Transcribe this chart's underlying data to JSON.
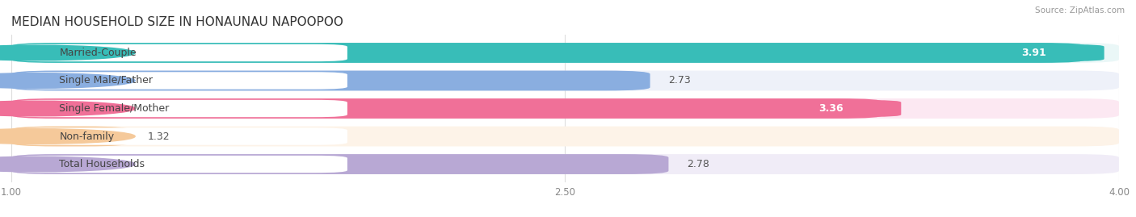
{
  "title": "MEDIAN HOUSEHOLD SIZE IN HONAUNAU NAPOOPOO",
  "source": "Source: ZipAtlas.com",
  "categories": [
    "Married-Couple",
    "Single Male/Father",
    "Single Female/Mother",
    "Non-family",
    "Total Households"
  ],
  "values": [
    3.91,
    2.73,
    3.36,
    1.32,
    2.78
  ],
  "bar_colors": [
    "#38bdb8",
    "#8aaee0",
    "#f07098",
    "#f5c99a",
    "#b8a8d4"
  ],
  "bar_bg_colors": [
    "#eaf7f7",
    "#eef1f9",
    "#fce8f2",
    "#fdf3e8",
    "#f0ecf7"
  ],
  "label_dot_colors": [
    "#38bdb8",
    "#8aaee0",
    "#f07098",
    "#f5c99a",
    "#b8a8d4"
  ],
  "value_inside": [
    true,
    false,
    true,
    false,
    false
  ],
  "xmin": 1.0,
  "xmax": 4.0,
  "xticks": [
    1.0,
    2.5,
    4.0
  ],
  "title_fontsize": 11,
  "label_fontsize": 9,
  "value_fontsize": 9,
  "background_color": "#ffffff"
}
